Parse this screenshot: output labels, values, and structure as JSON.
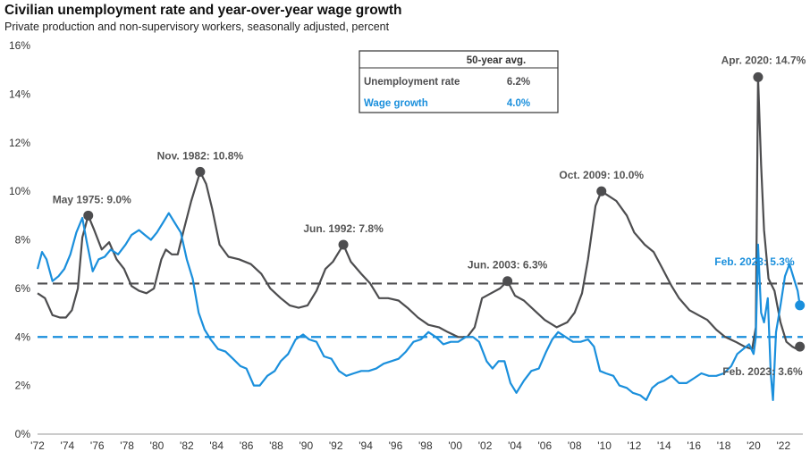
{
  "chart_data": {
    "type": "line",
    "title": "Civilian unemployment rate and year-over-year wage growth",
    "subtitle": "Private production and non-supervisory workers, seasonally adjusted, percent",
    "ylim": [
      0,
      16
    ],
    "y_ticks": [
      "0%",
      "2%",
      "4%",
      "6%",
      "8%",
      "10%",
      "12%",
      "14%",
      "16%"
    ],
    "x_ticks": [
      "'72",
      "'74",
      "'76",
      "'78",
      "'80",
      "'82",
      "'84",
      "'86",
      "'88",
      "'90",
      "'92",
      "'94",
      "'96",
      "'98",
      "'00",
      "'02",
      "'04",
      "'06",
      "'08",
      "'10",
      "'12",
      "'14",
      "'16",
      "'18",
      "'20",
      "'22"
    ],
    "xlim": [
      1972,
      2023.3
    ],
    "colors": {
      "unemployment": "#4d4d4f",
      "wage": "#1a8fdc"
    },
    "legend": {
      "header": "50-year avg.",
      "rows": [
        {
          "label": "Unemployment rate",
          "value": "6.2%"
        },
        {
          "label": "Wage growth",
          "value": "4.0%"
        }
      ]
    },
    "averages": {
      "unemployment": 6.2,
      "wage": 4.0
    },
    "series": [
      {
        "key": "unemployment",
        "points": [
          [
            1972.0,
            5.8
          ],
          [
            1972.5,
            5.6
          ],
          [
            1973.0,
            4.9
          ],
          [
            1973.5,
            4.8
          ],
          [
            1973.9,
            4.8
          ],
          [
            1974.3,
            5.1
          ],
          [
            1974.7,
            6.0
          ],
          [
            1975.0,
            8.1
          ],
          [
            1975.4,
            9.0
          ],
          [
            1975.8,
            8.4
          ],
          [
            1976.3,
            7.6
          ],
          [
            1976.8,
            7.9
          ],
          [
            1977.3,
            7.2
          ],
          [
            1977.8,
            6.8
          ],
          [
            1978.3,
            6.1
          ],
          [
            1978.8,
            5.9
          ],
          [
            1979.3,
            5.8
          ],
          [
            1979.8,
            6.0
          ],
          [
            1980.3,
            7.2
          ],
          [
            1980.6,
            7.6
          ],
          [
            1981.0,
            7.4
          ],
          [
            1981.4,
            7.4
          ],
          [
            1981.8,
            8.4
          ],
          [
            1982.3,
            9.6
          ],
          [
            1982.9,
            10.8
          ],
          [
            1983.3,
            10.3
          ],
          [
            1983.7,
            9.3
          ],
          [
            1984.2,
            7.8
          ],
          [
            1984.8,
            7.3
          ],
          [
            1985.5,
            7.2
          ],
          [
            1986.3,
            7.0
          ],
          [
            1987.0,
            6.6
          ],
          [
            1987.6,
            6.0
          ],
          [
            1988.3,
            5.6
          ],
          [
            1988.9,
            5.3
          ],
          [
            1989.5,
            5.2
          ],
          [
            1990.1,
            5.3
          ],
          [
            1990.7,
            5.9
          ],
          [
            1991.3,
            6.8
          ],
          [
            1991.8,
            7.1
          ],
          [
            1992.5,
            7.8
          ],
          [
            1993.0,
            7.1
          ],
          [
            1993.7,
            6.6
          ],
          [
            1994.3,
            6.2
          ],
          [
            1994.9,
            5.6
          ],
          [
            1995.5,
            5.6
          ],
          [
            1996.2,
            5.5
          ],
          [
            1996.8,
            5.2
          ],
          [
            1997.5,
            4.8
          ],
          [
            1998.2,
            4.5
          ],
          [
            1998.9,
            4.4
          ],
          [
            1999.5,
            4.2
          ],
          [
            2000.2,
            4.0
          ],
          [
            2000.8,
            4.0
          ],
          [
            2001.3,
            4.4
          ],
          [
            2001.8,
            5.6
          ],
          [
            2002.4,
            5.8
          ],
          [
            2003.0,
            6.0
          ],
          [
            2003.5,
            6.3
          ],
          [
            2004.0,
            5.7
          ],
          [
            2004.6,
            5.5
          ],
          [
            2005.3,
            5.1
          ],
          [
            2006.0,
            4.7
          ],
          [
            2006.8,
            4.4
          ],
          [
            2007.5,
            4.6
          ],
          [
            2008.0,
            5.0
          ],
          [
            2008.5,
            5.8
          ],
          [
            2008.9,
            7.2
          ],
          [
            2009.4,
            9.4
          ],
          [
            2009.8,
            10.0
          ],
          [
            2010.3,
            9.8
          ],
          [
            2010.8,
            9.6
          ],
          [
            2011.5,
            9.0
          ],
          [
            2012.0,
            8.3
          ],
          [
            2012.7,
            7.8
          ],
          [
            2013.3,
            7.5
          ],
          [
            2013.9,
            6.8
          ],
          [
            2014.5,
            6.1
          ],
          [
            2015.0,
            5.6
          ],
          [
            2015.7,
            5.1
          ],
          [
            2016.3,
            4.9
          ],
          [
            2016.9,
            4.7
          ],
          [
            2017.5,
            4.3
          ],
          [
            2018.1,
            4.0
          ],
          [
            2018.8,
            3.8
          ],
          [
            2019.4,
            3.6
          ],
          [
            2019.9,
            3.5
          ],
          [
            2020.15,
            4.4
          ],
          [
            2020.3,
            14.7
          ],
          [
            2020.5,
            11.1
          ],
          [
            2020.7,
            8.4
          ],
          [
            2021.0,
            6.4
          ],
          [
            2021.4,
            5.9
          ],
          [
            2021.8,
            4.6
          ],
          [
            2022.2,
            3.8
          ],
          [
            2022.6,
            3.6
          ],
          [
            2022.9,
            3.5
          ],
          [
            2023.1,
            3.6
          ]
        ]
      },
      {
        "key": "wage",
        "points": [
          [
            1972.0,
            6.8
          ],
          [
            1972.3,
            7.5
          ],
          [
            1972.6,
            7.2
          ],
          [
            1973.0,
            6.3
          ],
          [
            1973.4,
            6.5
          ],
          [
            1973.8,
            6.8
          ],
          [
            1974.2,
            7.4
          ],
          [
            1974.6,
            8.3
          ],
          [
            1975.0,
            8.9
          ],
          [
            1975.3,
            7.9
          ],
          [
            1975.7,
            6.7
          ],
          [
            1976.1,
            7.2
          ],
          [
            1976.5,
            7.3
          ],
          [
            1976.9,
            7.6
          ],
          [
            1977.4,
            7.4
          ],
          [
            1977.9,
            7.8
          ],
          [
            1978.3,
            8.2
          ],
          [
            1978.8,
            8.4
          ],
          [
            1979.2,
            8.2
          ],
          [
            1979.6,
            8.0
          ],
          [
            1980.0,
            8.3
          ],
          [
            1980.4,
            8.7
          ],
          [
            1980.8,
            9.1
          ],
          [
            1981.2,
            8.7
          ],
          [
            1981.6,
            8.3
          ],
          [
            1982.0,
            7.2
          ],
          [
            1982.4,
            6.4
          ],
          [
            1982.8,
            5.0
          ],
          [
            1983.2,
            4.3
          ],
          [
            1983.6,
            3.9
          ],
          [
            1984.1,
            3.5
          ],
          [
            1984.6,
            3.4
          ],
          [
            1985.1,
            3.1
          ],
          [
            1985.6,
            2.8
          ],
          [
            1986.0,
            2.7
          ],
          [
            1986.5,
            2.0
          ],
          [
            1986.9,
            2.0
          ],
          [
            1987.4,
            2.4
          ],
          [
            1987.9,
            2.6
          ],
          [
            1988.3,
            3.0
          ],
          [
            1988.8,
            3.3
          ],
          [
            1989.3,
            3.9
          ],
          [
            1989.8,
            4.1
          ],
          [
            1990.2,
            3.9
          ],
          [
            1990.7,
            3.8
          ],
          [
            1991.2,
            3.2
          ],
          [
            1991.7,
            3.1
          ],
          [
            1992.2,
            2.6
          ],
          [
            1992.7,
            2.4
          ],
          [
            1993.2,
            2.5
          ],
          [
            1993.7,
            2.6
          ],
          [
            1994.2,
            2.6
          ],
          [
            1994.7,
            2.7
          ],
          [
            1995.2,
            2.9
          ],
          [
            1995.7,
            3.0
          ],
          [
            1996.2,
            3.1
          ],
          [
            1996.7,
            3.4
          ],
          [
            1997.2,
            3.8
          ],
          [
            1997.7,
            3.9
          ],
          [
            1998.2,
            4.2
          ],
          [
            1998.7,
            4.0
          ],
          [
            1999.2,
            3.7
          ],
          [
            1999.7,
            3.8
          ],
          [
            2000.2,
            3.8
          ],
          [
            2000.7,
            4.0
          ],
          [
            2001.2,
            4.0
          ],
          [
            2001.6,
            3.8
          ],
          [
            2002.1,
            3.0
          ],
          [
            2002.5,
            2.7
          ],
          [
            2002.9,
            3.0
          ],
          [
            2003.3,
            3.0
          ],
          [
            2003.7,
            2.1
          ],
          [
            2004.1,
            1.7
          ],
          [
            2004.6,
            2.2
          ],
          [
            2005.1,
            2.6
          ],
          [
            2005.6,
            2.7
          ],
          [
            2006.1,
            3.4
          ],
          [
            2006.5,
            3.9
          ],
          [
            2006.9,
            4.2
          ],
          [
            2007.4,
            4.0
          ],
          [
            2007.9,
            3.8
          ],
          [
            2008.4,
            3.8
          ],
          [
            2008.9,
            3.9
          ],
          [
            2009.3,
            3.6
          ],
          [
            2009.7,
            2.6
          ],
          [
            2010.1,
            2.5
          ],
          [
            2010.6,
            2.4
          ],
          [
            2011.0,
            2.0
          ],
          [
            2011.5,
            1.9
          ],
          [
            2011.9,
            1.7
          ],
          [
            2012.4,
            1.6
          ],
          [
            2012.8,
            1.4
          ],
          [
            2013.2,
            1.9
          ],
          [
            2013.6,
            2.1
          ],
          [
            2014.0,
            2.2
          ],
          [
            2014.5,
            2.4
          ],
          [
            2015.0,
            2.1
          ],
          [
            2015.5,
            2.1
          ],
          [
            2016.0,
            2.3
          ],
          [
            2016.5,
            2.5
          ],
          [
            2017.0,
            2.4
          ],
          [
            2017.5,
            2.4
          ],
          [
            2018.0,
            2.5
          ],
          [
            2018.5,
            2.8
          ],
          [
            2018.9,
            3.3
          ],
          [
            2019.3,
            3.5
          ],
          [
            2019.7,
            3.7
          ],
          [
            2020.0,
            3.3
          ],
          [
            2020.15,
            4.0
          ],
          [
            2020.3,
            7.8
          ],
          [
            2020.5,
            5.0
          ],
          [
            2020.7,
            4.6
          ],
          [
            2020.95,
            5.6
          ],
          [
            2021.15,
            2.5
          ],
          [
            2021.3,
            1.4
          ],
          [
            2021.5,
            4.2
          ],
          [
            2021.8,
            5.3
          ],
          [
            2022.1,
            6.5
          ],
          [
            2022.4,
            7.0
          ],
          [
            2022.7,
            6.4
          ],
          [
            2022.95,
            5.9
          ],
          [
            2023.1,
            5.3
          ]
        ]
      }
    ],
    "annotations": [
      {
        "label": "May 1975: 9.0%",
        "x": 1975.4,
        "y": 9.0,
        "series": "unemployment"
      },
      {
        "label": "Nov. 1982: 10.8%",
        "x": 1982.9,
        "y": 10.8,
        "series": "unemployment"
      },
      {
        "label": "Jun. 1992: 7.8%",
        "x": 1992.5,
        "y": 7.8,
        "series": "unemployment"
      },
      {
        "label": "Jun. 2003: 6.3%",
        "x": 2003.5,
        "y": 6.3,
        "series": "unemployment"
      },
      {
        "label": "Oct. 2009: 10.0%",
        "x": 2009.8,
        "y": 10.0,
        "series": "unemployment"
      },
      {
        "label": "Apr. 2020: 14.7%",
        "x": 2020.3,
        "y": 14.7,
        "series": "unemployment"
      },
      {
        "label": "Feb. 2023: 5.3%",
        "x": 2023.1,
        "y": 5.3,
        "series": "wage"
      },
      {
        "label": "Feb. 2023: 3.6%",
        "x": 2023.1,
        "y": 3.6,
        "series": "unemployment"
      }
    ]
  }
}
